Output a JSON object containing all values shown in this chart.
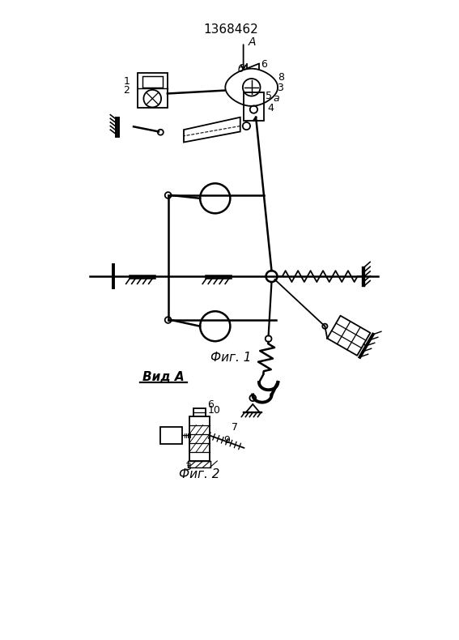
{
  "title": "1368462",
  "fig1_label": "Фиг. 1",
  "fig2_label": "Фиг. 2",
  "vid_label": "Вид A",
  "background": "#ffffff",
  "line_color": "#000000",
  "lw": 1.3
}
